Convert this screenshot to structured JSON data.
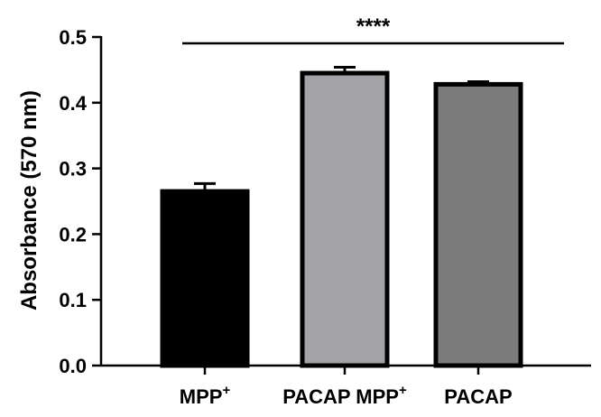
{
  "chart_data": {
    "type": "bar",
    "categories": [
      "MPP",
      "PACAP MPP",
      "PACAP"
    ],
    "category_superscripts": [
      "+",
      "+",
      ""
    ],
    "values": [
      0.265,
      0.445,
      0.428
    ],
    "errors": [
      0.012,
      0.009,
      0.004
    ],
    "bar_colors": [
      "#000000",
      "#a3a2a7",
      "#7b7b7b"
    ],
    "bar_edge_color": "#000000",
    "title": "",
    "xlabel": "",
    "ylabel": "Absorbance (570 nm)",
    "ylim": [
      0,
      0.5
    ],
    "yticks": [
      "0.0",
      "0.1",
      "0.2",
      "0.3",
      "0.4",
      "0.5"
    ],
    "grid": false,
    "legend": "none",
    "significance": {
      "label": "****",
      "from_category": "MPP",
      "to_category": "PACAP"
    }
  }
}
